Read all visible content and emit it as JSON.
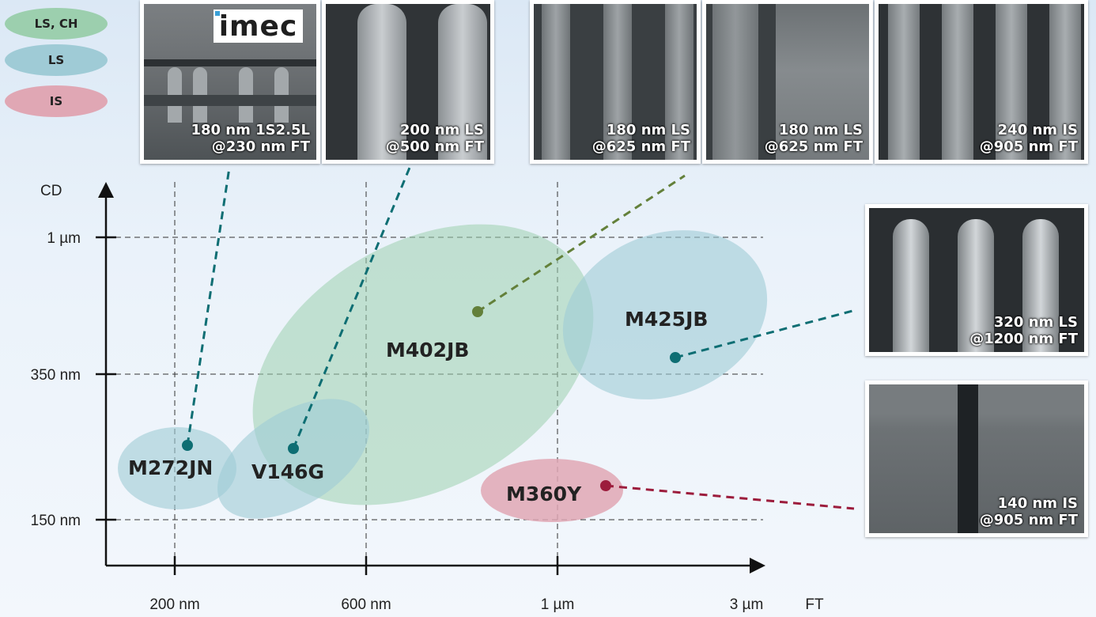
{
  "legend": [
    {
      "label": "LS, CH",
      "color": "#9ccfae"
    },
    {
      "label": "LS",
      "color": "#9fcbd6"
    },
    {
      "label": "IS",
      "color": "#e0a7b4"
    }
  ],
  "axes": {
    "y_title": "CD",
    "x_title": "FT",
    "y_ticks": [
      "1 µm",
      "350 nm",
      "150 nm"
    ],
    "x_ticks": [
      "200 nm",
      "600 nm",
      "1 µm",
      "3 µm"
    ]
  },
  "products": [
    {
      "name": "M272JN",
      "category": "LS",
      "color": "#9fcbd6",
      "dot": "#0e6e73"
    },
    {
      "name": "V146G",
      "category": "LS",
      "color": "#9fcbd6",
      "dot": "#0e6e73"
    },
    {
      "name": "M402JB",
      "category": "LS, CH",
      "color": "#9ccfae",
      "dot": "#63803a"
    },
    {
      "name": "M425JB",
      "category": "LS",
      "color": "#9fcbd6",
      "dot": "#0e6e73"
    },
    {
      "name": "M360Y",
      "category": "IS",
      "color": "#e0a7b4",
      "dot": "#9c1c3c"
    }
  ],
  "sem_images": [
    {
      "line1": "180 nm 1S2.5L",
      "line2": "@230 nm FT",
      "logo": "imec"
    },
    {
      "line1": "200 nm LS",
      "line2": "@500 nm FT"
    },
    {
      "line1": "180 nm LS",
      "line2": "@625 nm FT"
    },
    {
      "line1": "180 nm LS",
      "line2": "@625 nm FT"
    },
    {
      "line1": "240 nm IS",
      "line2": "@905 nm FT"
    },
    {
      "line1": "320 nm LS",
      "line2": "@1200 nm FT"
    },
    {
      "line1": "140 nm IS",
      "line2": "@905 nm FT"
    }
  ],
  "colors": {
    "teal_line": "#0e6e73",
    "olive_line": "#63803a",
    "red_line": "#9c1c3c",
    "axis": "#111111"
  }
}
